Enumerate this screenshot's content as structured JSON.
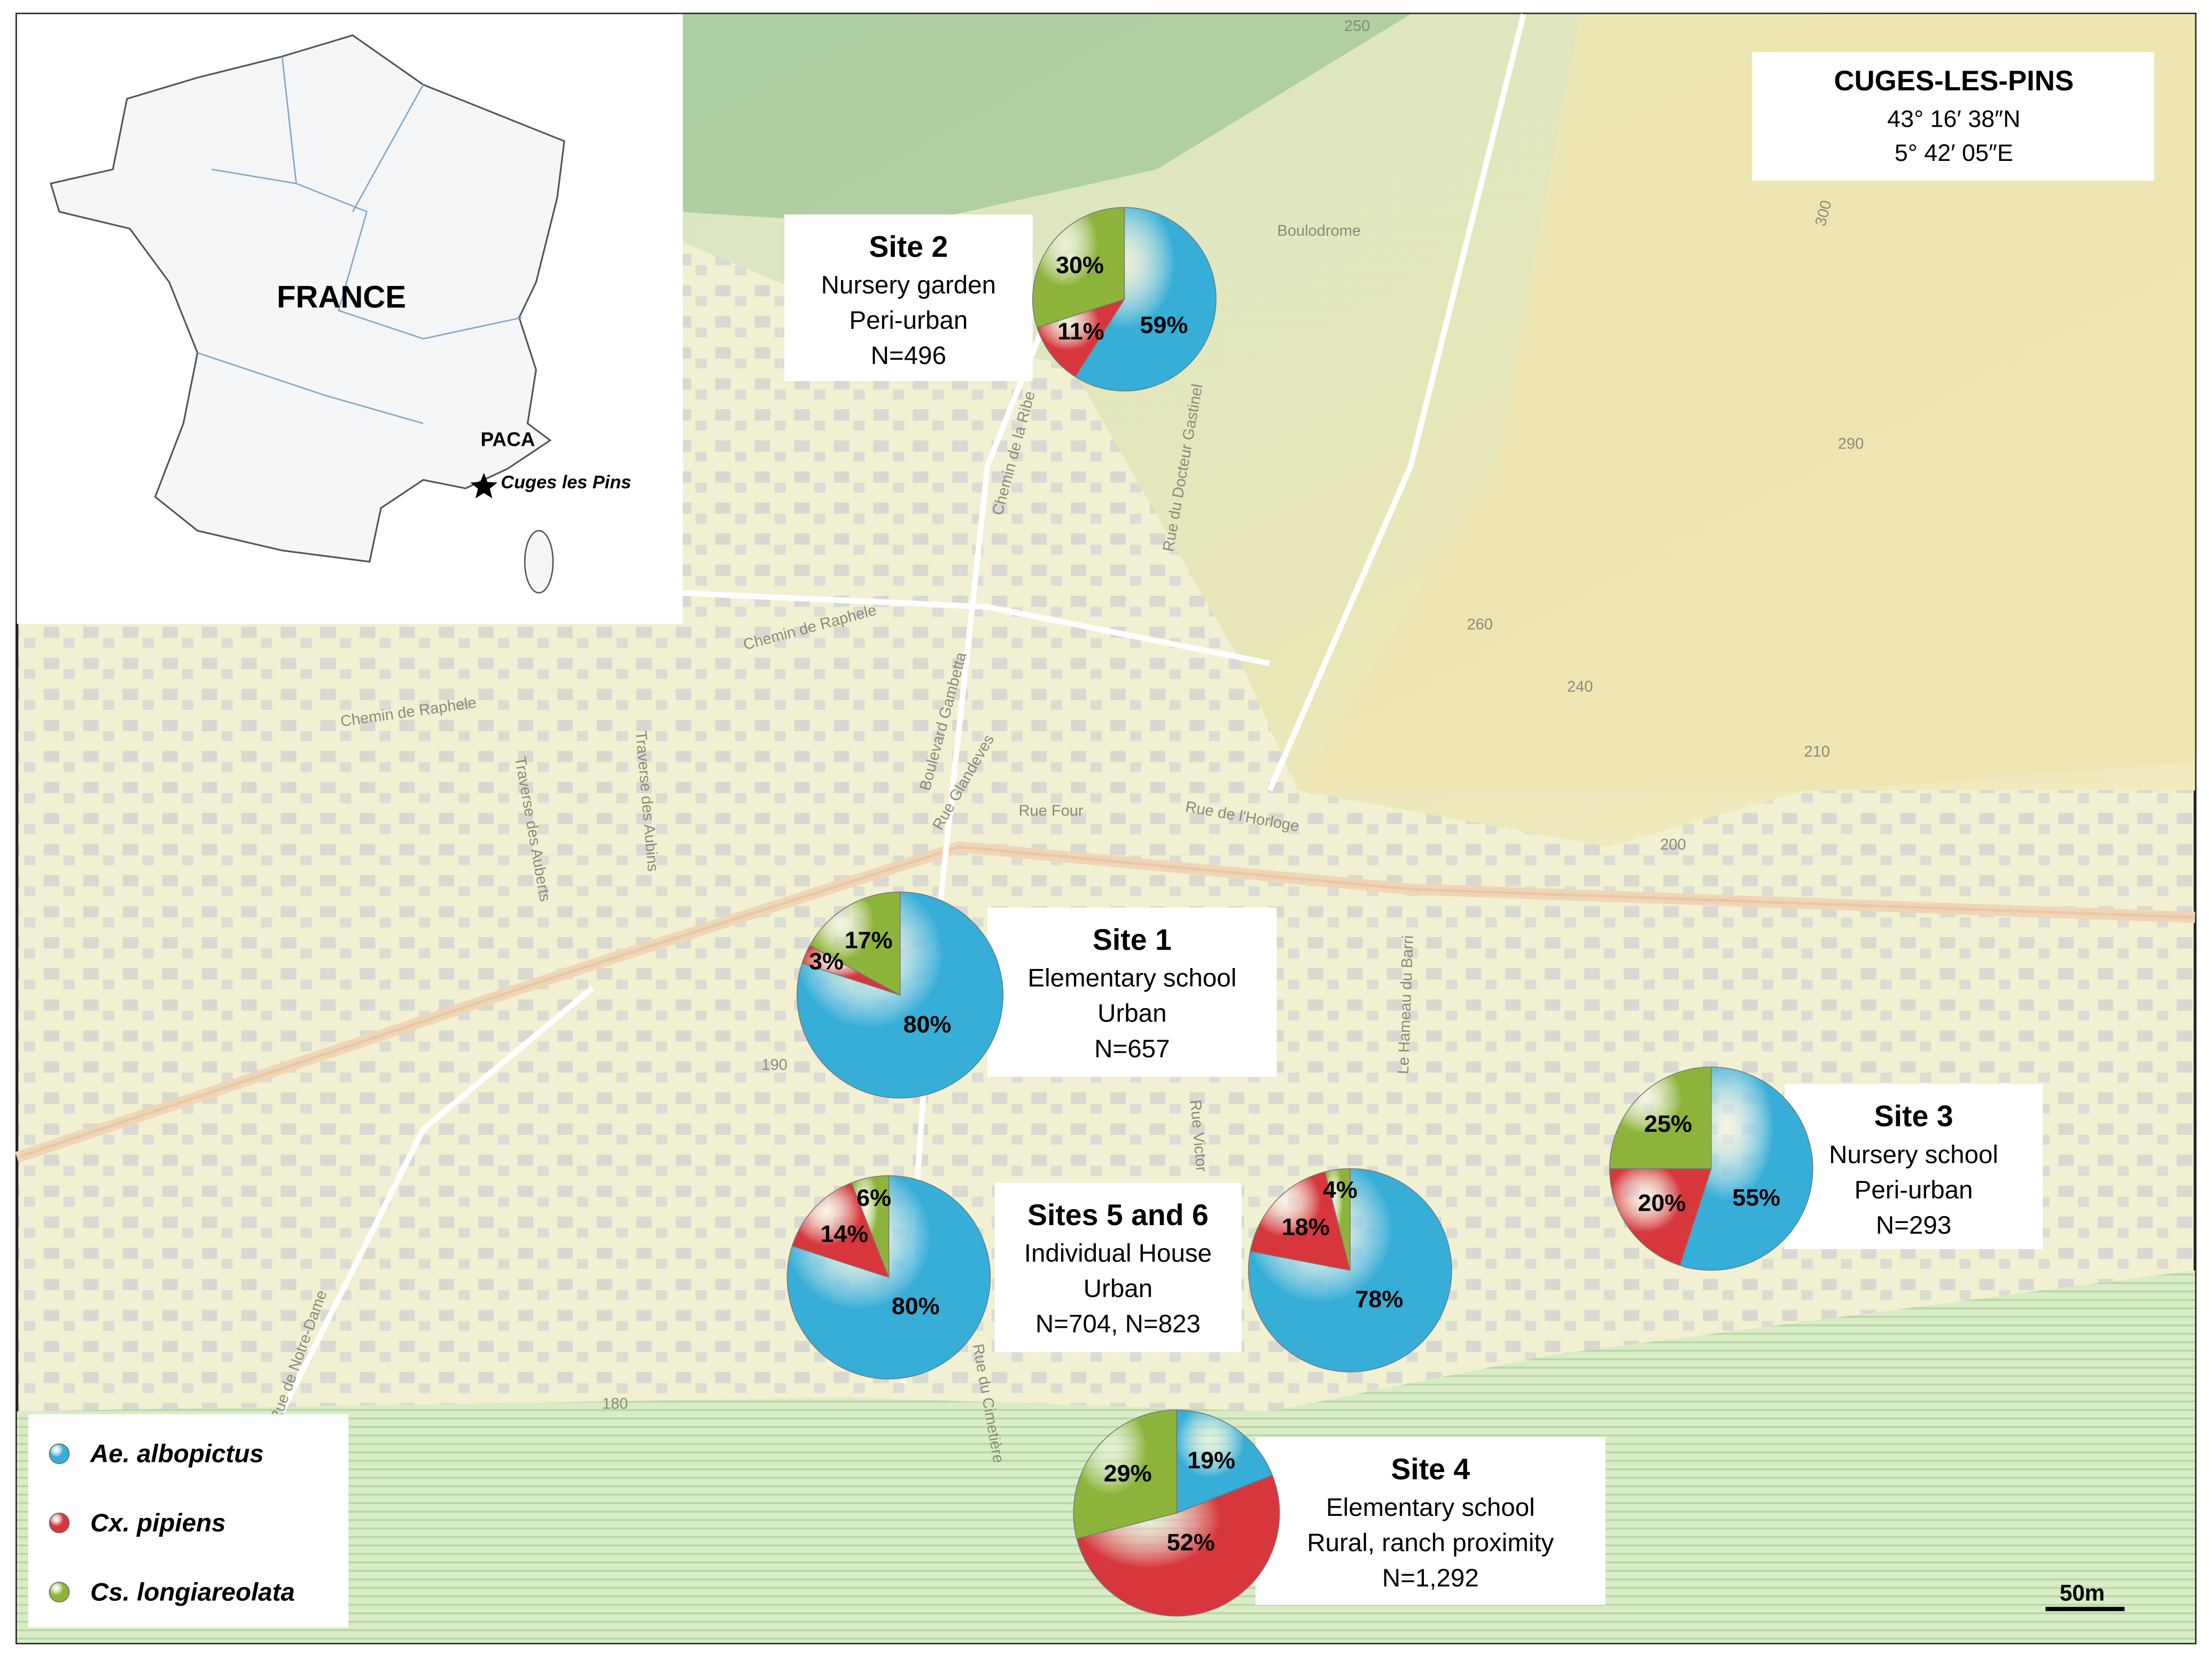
{
  "inset": {
    "country": "FRANCE",
    "region": "PACA",
    "town": "Cuges les Pins"
  },
  "location": {
    "name": "CUGES-LES-PINS",
    "lat": "43° 16′ 38″N",
    "lon": "5° 42′ 05″E"
  },
  "species": [
    {
      "name": "Ae. albopictus",
      "color": "#36aed8"
    },
    {
      "name": "Cx. pipiens",
      "color": "#d7373c"
    },
    {
      "name": "Cs. longiareolata",
      "color": "#8db43a"
    }
  ],
  "sites": [
    {
      "title": "Site 2",
      "lines": [
        "Nursery garden",
        "Peri-urban",
        "N=496"
      ],
      "pies": [
        {
          "values": [
            59,
            11,
            30
          ],
          "value_labels": [
            "59%",
            "11%",
            "30%"
          ]
        }
      ]
    },
    {
      "title": "Site 1",
      "lines": [
        "Elementary school",
        "Urban",
        "N=657"
      ],
      "pies": [
        {
          "values": [
            80,
            3,
            17
          ],
          "value_labels": [
            "80%",
            "3%",
            "17%"
          ]
        }
      ]
    },
    {
      "title": "Sites 5 and 6",
      "lines": [
        "Individual House",
        "Urban",
        "N=704, N=823"
      ],
      "pies": [
        {
          "values": [
            80,
            14,
            6
          ],
          "value_labels": [
            "80%",
            "14%",
            "6%"
          ]
        },
        {
          "values": [
            78,
            18,
            4
          ],
          "value_labels": [
            "78%",
            "18%",
            "4%"
          ]
        }
      ]
    },
    {
      "title": "Site 3",
      "lines": [
        "Nursery school",
        "Peri-urban",
        "N=293"
      ],
      "pies": [
        {
          "values": [
            55,
            20,
            25
          ],
          "value_labels": [
            "55%",
            "20%",
            "25%"
          ]
        }
      ]
    },
    {
      "title": "Site 4",
      "lines": [
        "Elementary school",
        "Rural, ranch proximity",
        "N=1,292"
      ],
      "pies": [
        {
          "values": [
            19,
            52,
            29
          ],
          "value_labels": [
            "19%",
            "52%",
            "29%"
          ]
        }
      ]
    }
  ],
  "map_labels": [
    "Chemin de Raphele",
    "Chemin de Raphele",
    "Boulevard Gambetta",
    "Rue Glandeves",
    "Rue Four",
    "Rue de l'Horloge",
    "Traverse des Aubins",
    "Traverse des Auberts",
    "Le Hameau du Barri",
    "Rue du Docteur Gastinel",
    "Chemin de la Ribe",
    "Boulodrome",
    "Rue Victor",
    "Rue du Cimetière",
    "Rue de Notre-Dame",
    "250",
    "300",
    "290",
    "260",
    "240",
    "210",
    "200",
    "190",
    "180"
  ],
  "scale": "50m"
}
